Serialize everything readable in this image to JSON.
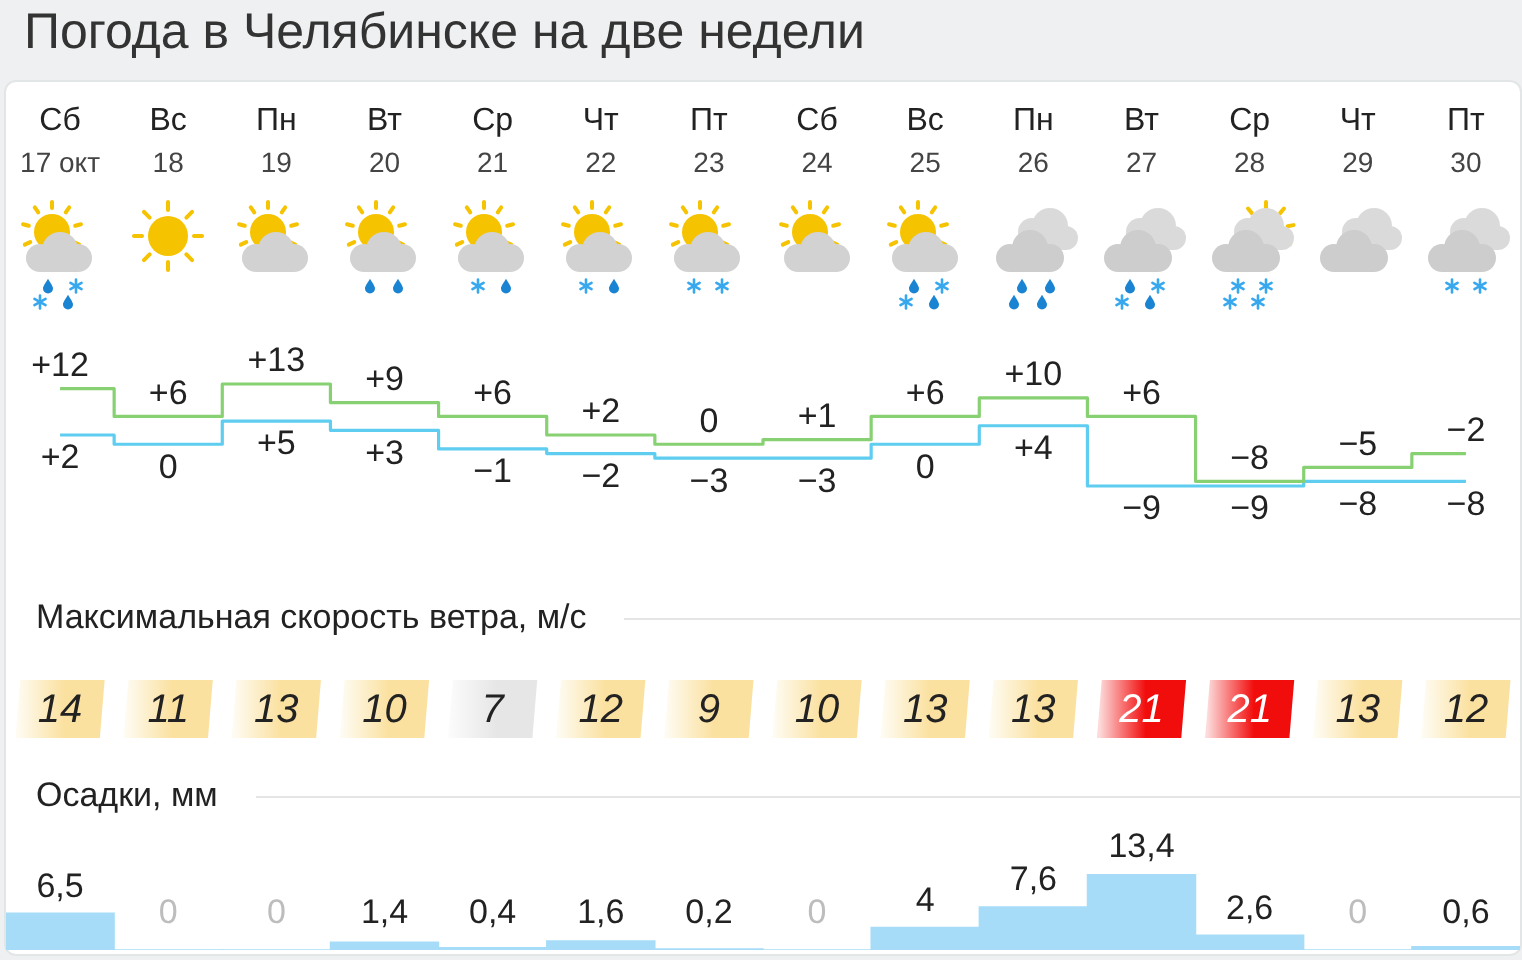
{
  "chart_data": [
    {
      "type": "step",
      "title": "Погода в Челябинске на две недели",
      "categories": [
        "Сб 17 окт",
        "Вс 18",
        "Пн 19",
        "Вт 20",
        "Ср 21",
        "Чт 22",
        "Пт 23",
        "Сб 24",
        "Вс 25",
        "Пн 26",
        "Вт 27",
        "Ср 28",
        "Чт 29",
        "Пт 30"
      ],
      "tick_labels": "x",
      "series": [
        {
          "color": "#87d172",
          "values": [
            12,
            6,
            13,
            9,
            6,
            2,
            0,
            1,
            6,
            10,
            6,
            -8,
            -5,
            -2
          ],
          "value_labels": [
            "+12",
            "+6",
            "+13",
            "+9",
            "+6",
            "+2",
            "0",
            "+1",
            "+6",
            "+10",
            "+6",
            "−8",
            "−5",
            "−2"
          ]
        },
        {
          "color": "#5fcdf0",
          "values": [
            2,
            0,
            5,
            3,
            -1,
            -2,
            -3,
            -3,
            0,
            4,
            -9,
            -9,
            -8,
            -8
          ],
          "value_labels": [
            "+2",
            "0",
            "+5",
            "+3",
            "−1",
            "−2",
            "−3",
            "−3",
            "0",
            "+4",
            "−9",
            "−9",
            "−8",
            "−8"
          ]
        }
      ]
    },
    {
      "type": "other",
      "title": "Максимальная скорость ветра, м/с",
      "values": [
        14,
        11,
        13,
        10,
        7,
        12,
        9,
        10,
        13,
        13,
        21,
        21,
        13,
        12
      ],
      "data_labels": true,
      "colors": [
        "#fbe1a0",
        "#fbe1a0",
        "#fbe1a0",
        "#fbe1a0",
        "#e6e6e6",
        "#fbe1a0",
        "#fbe1a0",
        "#fbe1a0",
        "#fbe1a0",
        "#fbe1a0",
        "#f20d0d",
        "#f20d0d",
        "#fbe1a0",
        "#fbe1a0"
      ]
    },
    {
      "type": "bar",
      "title": "Осадки, мм",
      "categories": [
        null,
        null,
        null,
        null,
        null,
        null,
        null,
        null,
        null,
        null,
        null,
        null,
        null,
        null
      ],
      "tick_labels": false,
      "values": [
        6.5,
        0,
        0,
        1.4,
        0.4,
        1.6,
        0.2,
        0,
        4,
        7.6,
        13.4,
        2.6,
        0,
        0.6
      ],
      "value_labels": [
        "6,5",
        "0",
        "0",
        "1,4",
        "0,4",
        "1,6",
        "0,2",
        "0",
        "4",
        "7,6",
        "13,4",
        "2,6",
        "0",
        "0,6"
      ],
      "color": "#a6dcf7"
    }
  ]
}
